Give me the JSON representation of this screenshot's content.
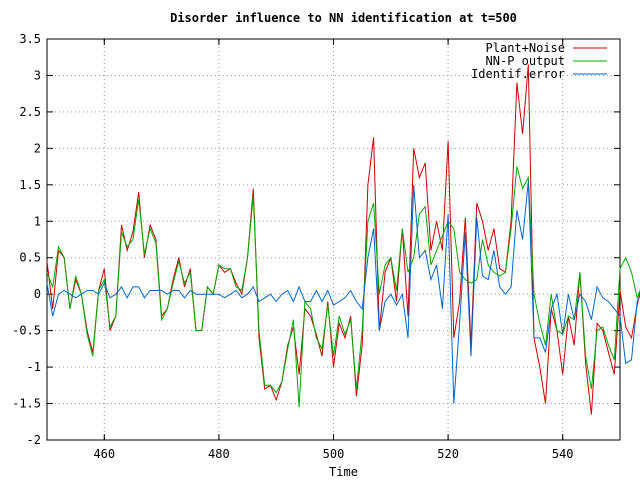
{
  "chart_data": {
    "type": "line",
    "title": "Disorder influence to NN identification at t=500",
    "xlabel": "Time",
    "ylabel": "",
    "xlim": [
      450,
      550
    ],
    "ylim": [
      -2,
      3.5
    ],
    "x_ticks": [
      460,
      480,
      500,
      520,
      540
    ],
    "y_ticks": [
      -2,
      -1.5,
      -1,
      -0.5,
      0,
      0.5,
      1,
      1.5,
      2,
      2.5,
      3,
      3.5
    ],
    "x_tick_labels": [
      "460",
      "480",
      "500",
      "520",
      "540"
    ],
    "y_tick_labels": [
      "-2",
      "-1.5",
      "-1",
      "-0.5",
      "0",
      "0.5",
      "1",
      "1.5",
      "2",
      "2.5",
      "3",
      "3.5"
    ],
    "grid": true,
    "legend_position": "top-right",
    "x_start": 450,
    "x_step": 1,
    "series": [
      {
        "name": "Plant+Noise",
        "color": "#cc0000",
        "values": [
          0.45,
          -0.2,
          0.6,
          0.5,
          -0.2,
          0.2,
          0.0,
          -0.5,
          -0.8,
          0.05,
          0.35,
          -0.5,
          -0.3,
          0.95,
          0.6,
          0.85,
          1.4,
          0.5,
          0.95,
          0.75,
          -0.3,
          -0.2,
          0.2,
          0.5,
          0.1,
          0.35,
          -0.5,
          -0.5,
          0.1,
          0.0,
          0.4,
          0.3,
          0.35,
          0.15,
          0.0,
          0.5,
          1.45,
          -0.6,
          -1.3,
          -1.25,
          -1.45,
          -1.2,
          -0.7,
          -0.45,
          -1.1,
          -0.2,
          -0.3,
          -0.55,
          -0.85,
          -0.1,
          -1.0,
          -0.4,
          -0.6,
          -0.3,
          -1.4,
          -0.7,
          1.5,
          2.15,
          -0.5,
          0.3,
          0.5,
          -0.1,
          0.9,
          -0.3,
          2.0,
          1.6,
          1.8,
          0.6,
          1.0,
          0.6,
          2.1,
          -0.6,
          -0.1,
          1.05,
          -0.7,
          1.25,
          1.0,
          0.6,
          0.9,
          0.35,
          0.3,
          1.0,
          2.9,
          2.2,
          3.15,
          -0.6,
          -1.0,
          -1.5,
          -0.2,
          -0.5,
          -1.1,
          -0.3,
          -0.7,
          0.3,
          -0.95,
          -1.65,
          -0.4,
          -0.5,
          -0.8,
          -1.1,
          0.05,
          -0.45,
          -0.6,
          -0.15,
          0.2,
          1.05,
          0.3,
          -0.7,
          0.1,
          -1.15,
          -0.4,
          -0.5,
          -0.9,
          -0.3,
          0.2,
          0.9,
          1.75,
          1.5,
          1.9,
          1.65
        ],
        "x_values_note": ""
      },
      {
        "name": "NN-P output",
        "color": "#00aa00",
        "values": [
          0.3,
          0.1,
          0.65,
          0.5,
          -0.2,
          0.25,
          0.0,
          -0.55,
          -0.85,
          0.05,
          0.2,
          -0.45,
          -0.3,
          0.85,
          0.65,
          0.75,
          1.3,
          0.55,
          0.9,
          0.7,
          -0.35,
          -0.2,
          0.15,
          0.45,
          0.15,
          0.3,
          -0.5,
          -0.5,
          0.1,
          0.0,
          0.4,
          0.35,
          0.35,
          0.1,
          0.05,
          0.5,
          1.35,
          -0.5,
          -1.25,
          -1.25,
          -1.35,
          -1.2,
          -0.75,
          -0.35,
          -1.55,
          -0.1,
          -0.2,
          -0.6,
          -0.75,
          -0.15,
          -0.85,
          -0.3,
          -0.55,
          -0.35,
          -1.3,
          -0.5,
          1.0,
          1.25,
          0.0,
          0.4,
          0.5,
          0.05,
          0.9,
          0.3,
          0.5,
          1.1,
          1.2,
          0.4,
          0.6,
          0.8,
          1.0,
          0.9,
          0.3,
          0.2,
          0.15,
          0.2,
          0.75,
          0.4,
          0.3,
          0.25,
          0.3,
          0.9,
          1.75,
          1.45,
          1.6,
          0.0,
          -0.4,
          -0.7,
          0.0,
          -0.5,
          -0.55,
          -0.3,
          -0.35,
          0.3,
          -0.85,
          -1.3,
          -0.5,
          -0.45,
          -0.7,
          -0.9,
          0.35,
          0.5,
          0.3,
          -0.05,
          0.15,
          0.9,
          0.3,
          -0.65,
          -0.1,
          -0.75,
          -0.4,
          -0.5,
          -0.85,
          -0.2,
          0.1,
          0.75,
          1.1,
          1.15,
          1.1,
          1.15
        ],
        "x_values_note": ""
      },
      {
        "name": "Identif.error",
        "color": "#0066cc",
        "values": [
          0.15,
          -0.3,
          0.0,
          0.05,
          0.0,
          -0.05,
          0.0,
          0.05,
          0.05,
          0.0,
          0.15,
          -0.05,
          0.0,
          0.1,
          -0.05,
          0.1,
          0.1,
          -0.05,
          0.05,
          0.05,
          0.05,
          0.0,
          0.05,
          0.05,
          -0.05,
          0.05,
          0.0,
          0.0,
          0.0,
          0.0,
          0.0,
          -0.05,
          0.0,
          0.05,
          -0.05,
          0.0,
          0.1,
          -0.1,
          -0.05,
          0.0,
          -0.1,
          0.0,
          0.05,
          -0.1,
          0.1,
          -0.1,
          -0.1,
          0.05,
          -0.1,
          0.05,
          -0.15,
          -0.1,
          -0.05,
          0.05,
          -0.1,
          -0.2,
          0.5,
          0.9,
          -0.5,
          -0.1,
          0.0,
          -0.15,
          0.0,
          -0.6,
          1.5,
          0.5,
          0.6,
          0.2,
          0.4,
          -0.2,
          1.1,
          -1.5,
          -0.4,
          0.85,
          -0.85,
          1.05,
          0.25,
          0.2,
          0.6,
          0.1,
          0.0,
          0.1,
          1.15,
          0.75,
          1.55,
          -0.6,
          -0.6,
          -0.8,
          -0.2,
          0.0,
          -0.55,
          0.0,
          -0.35,
          0.0,
          -0.1,
          -0.35,
          0.1,
          -0.05,
          -0.1,
          -0.2,
          -0.3,
          -0.95,
          -0.9,
          -0.1,
          0.05,
          0.15,
          0.0,
          -0.05,
          0.2,
          -0.4,
          0.0,
          0.0,
          -0.05,
          -0.1,
          0.1,
          0.15,
          0.65,
          0.35,
          0.8,
          0.5
        ],
        "x_values_note": ""
      }
    ]
  }
}
